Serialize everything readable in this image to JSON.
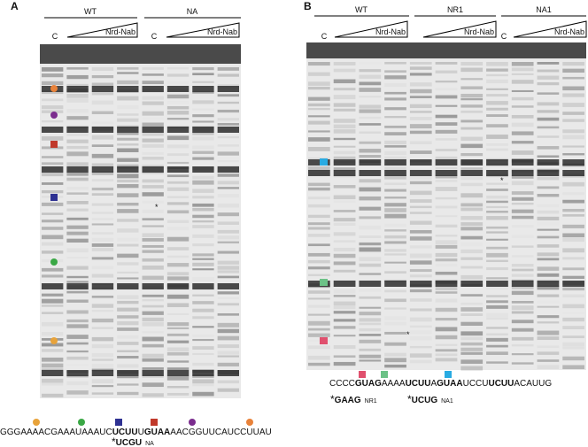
{
  "panel_a": {
    "label": "A",
    "groups": [
      {
        "name": "WT",
        "control": "C",
        "gradient": "Nrd-Nab"
      },
      {
        "name": "NA",
        "control": "C",
        "gradient": "Nrd-Nab"
      }
    ],
    "asterisk": "*",
    "sequence": [
      {
        "text": "GGGAAAACGAAAUAAAUC",
        "bold": false
      },
      {
        "text": "UCUU",
        "bold": true
      },
      {
        "text": "U",
        "bold": false
      },
      {
        "text": "GUAA",
        "bold": true
      },
      {
        "text": "AACGGUUCAUCCUUAU",
        "bold": false
      }
    ],
    "mutations": [
      {
        "prefix": "*",
        "bases": "UCGU",
        "name": "NA"
      }
    ]
  },
  "panel_b": {
    "label": "B",
    "groups": [
      {
        "name": "WT",
        "control": "C",
        "gradient": "Nrd-Nab"
      },
      {
        "name": "NR1",
        "gradient": "Nrd-Nab"
      },
      {
        "name": "NA1",
        "control": "C",
        "gradient": "Nrd-Nab"
      }
    ],
    "asterisks": [
      "*",
      "*"
    ],
    "sequence": [
      {
        "text": "CCCC",
        "bold": false
      },
      {
        "text": "GUAG",
        "bold": true
      },
      {
        "text": "AAAA",
        "bold": false
      },
      {
        "text": "UCUU",
        "bold": true
      },
      {
        "text": "A",
        "bold": false
      },
      {
        "text": "GUAA",
        "bold": true
      },
      {
        "text": "UCCU",
        "bold": false
      },
      {
        "text": "UCUU",
        "bold": true
      },
      {
        "text": "ACAUUG",
        "bold": false
      }
    ],
    "mutations": [
      {
        "prefix": "*",
        "bases": "GAAG",
        "name": "NR1"
      },
      {
        "prefix": "*",
        "bases": "UCUG",
        "name": "NA1"
      }
    ]
  }
}
